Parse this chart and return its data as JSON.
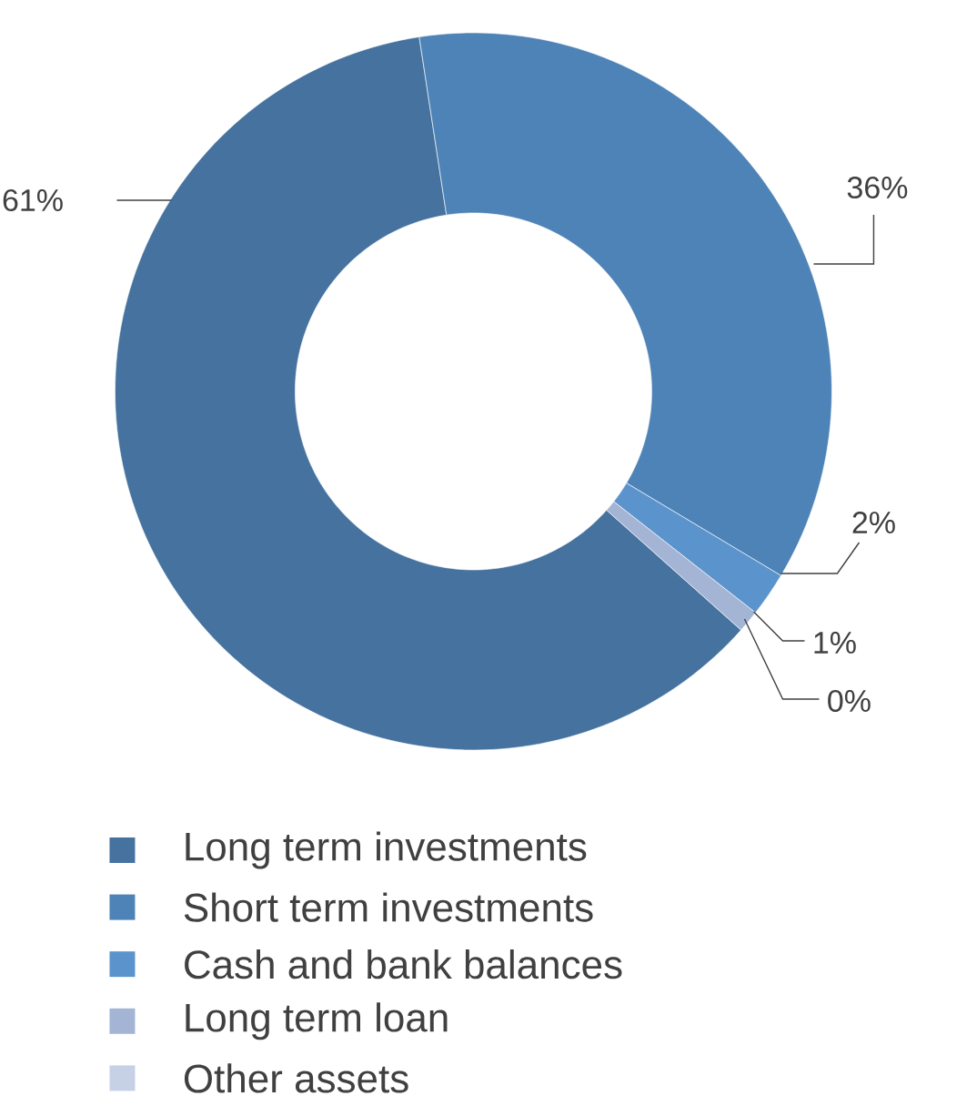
{
  "chart_data": {
    "type": "donut",
    "categories": [
      "Long term investments",
      "Short term investments",
      "Cash and bank balances",
      "Long term loan",
      "Other assets"
    ],
    "values": [
      61,
      36,
      2,
      1,
      0
    ],
    "value_labels": [
      "61%",
      "36%",
      "2%",
      "1%",
      "0%"
    ],
    "colors": [
      "#46729f",
      "#4e83b7",
      "#5b94cc",
      "#a3b4d5",
      "#c6d1e6"
    ],
    "legend": "bottom"
  }
}
